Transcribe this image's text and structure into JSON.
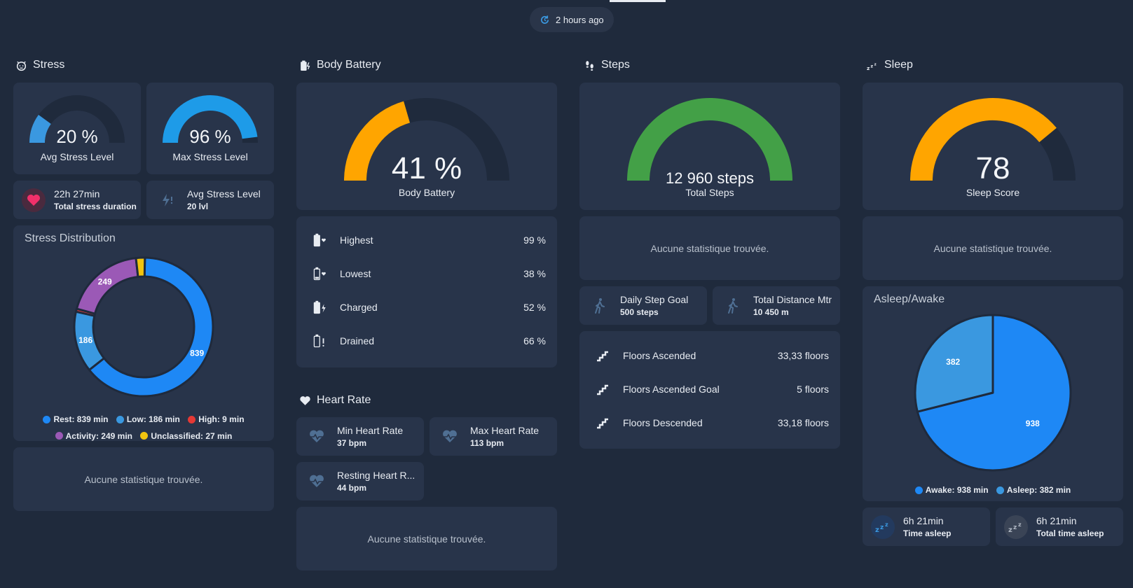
{
  "header": {
    "updated": "2 hours ago"
  },
  "colors": {
    "blue": "#1e88f5",
    "lightblue": "#3a98e0",
    "red": "#e53935",
    "purple": "#9b59b6",
    "yellow": "#f1c40f",
    "orange": "#ffa500",
    "green": "#43a047",
    "track": "#1f2a3c"
  },
  "stress": {
    "title": "Stress",
    "avg": {
      "value": "20 %",
      "label": "Avg Stress Level",
      "fraction": 0.2
    },
    "max": {
      "value": "96 %",
      "label": "Max Stress Level",
      "fraction": 0.96
    },
    "duration": {
      "main": "22h 27min",
      "sub": "Total stress duration"
    },
    "avg_level": {
      "main": "Avg Stress Level",
      "sub": "20 lvl"
    },
    "distribution_title": "Stress Distribution",
    "legend": [
      {
        "label": "Rest: 839 min",
        "color": "#1e88f5"
      },
      {
        "label": "Low: 186 min",
        "color": "#3a98e0"
      },
      {
        "label": "High: 9 min",
        "color": "#e53935"
      },
      {
        "label": "Activity: 249 min",
        "color": "#9b59b6"
      },
      {
        "label": "Unclassified: 27 min",
        "color": "#f1c40f"
      }
    ],
    "empty": "Aucune statistique trouvée."
  },
  "chart_data": [
    {
      "type": "pie",
      "title": "Stress Distribution",
      "labels": [
        "Rest",
        "Low",
        "High",
        "Activity",
        "Unclassified"
      ],
      "values": [
        839,
        186,
        9,
        249,
        27
      ],
      "colors": [
        "#1e88f5",
        "#3a98e0",
        "#e53935",
        "#9b59b6",
        "#f1c40f"
      ],
      "data_labels": [
        "839",
        "186",
        "",
        "249",
        ""
      ],
      "legend": "bottom"
    },
    {
      "type": "pie",
      "title": "Asleep/Awake",
      "labels": [
        "Awake",
        "Asleep"
      ],
      "values": [
        938,
        382
      ],
      "colors": [
        "#1e88f5",
        "#3a98e0"
      ],
      "data_labels": [
        "938",
        "382"
      ],
      "legend": "bottom"
    }
  ],
  "battery": {
    "title": "Body Battery",
    "gauge": {
      "value": "41 %",
      "label": "Body Battery",
      "fraction": 0.41
    },
    "rows": [
      {
        "label": "Highest",
        "value": "99 %",
        "icon": "battery-heart-icon"
      },
      {
        "label": "Lowest",
        "value": "38 %",
        "icon": "battery-low-heart-icon"
      },
      {
        "label": "Charged",
        "value": "52 %",
        "icon": "battery-charging-icon"
      },
      {
        "label": "Drained",
        "value": "66 %",
        "icon": "battery-alert-icon"
      }
    ]
  },
  "heart": {
    "title": "Heart Rate",
    "min": {
      "main": "Min Heart Rate",
      "sub": "37 bpm"
    },
    "max": {
      "main": "Max Heart Rate",
      "sub": "113 bpm"
    },
    "rest": {
      "main": "Resting Heart R...",
      "sub": "44 bpm"
    },
    "empty": "Aucune statistique trouvée."
  },
  "steps": {
    "title": "Steps",
    "gauge": {
      "value": "12 960 steps",
      "label": "Total Steps",
      "fraction": 1.0
    },
    "empty": "Aucune statistique trouvée.",
    "goal": {
      "main": "Daily Step Goal",
      "sub": "500 steps"
    },
    "distance": {
      "main": "Total Distance Mtr",
      "sub": "10 450 m"
    },
    "floors": [
      {
        "label": "Floors Ascended",
        "value": "33,33 floors"
      },
      {
        "label": "Floors Ascended Goal",
        "value": "5 floors"
      },
      {
        "label": "Floors Descended",
        "value": "33,18 floors"
      }
    ]
  },
  "sleep": {
    "title": "Sleep",
    "gauge": {
      "value": "78",
      "label": "Sleep Score",
      "fraction": 0.78
    },
    "empty": "Aucune statistique trouvée.",
    "pie_title": "Asleep/Awake",
    "legend": [
      {
        "label": "Awake: 938 min",
        "color": "#1e88f5"
      },
      {
        "label": "Asleep: 382 min",
        "color": "#3a98e0"
      }
    ],
    "time_asleep": {
      "main": "6h 21min",
      "sub": "Time asleep"
    },
    "total_asleep": {
      "main": "6h 21min",
      "sub": "Total time asleep"
    }
  }
}
